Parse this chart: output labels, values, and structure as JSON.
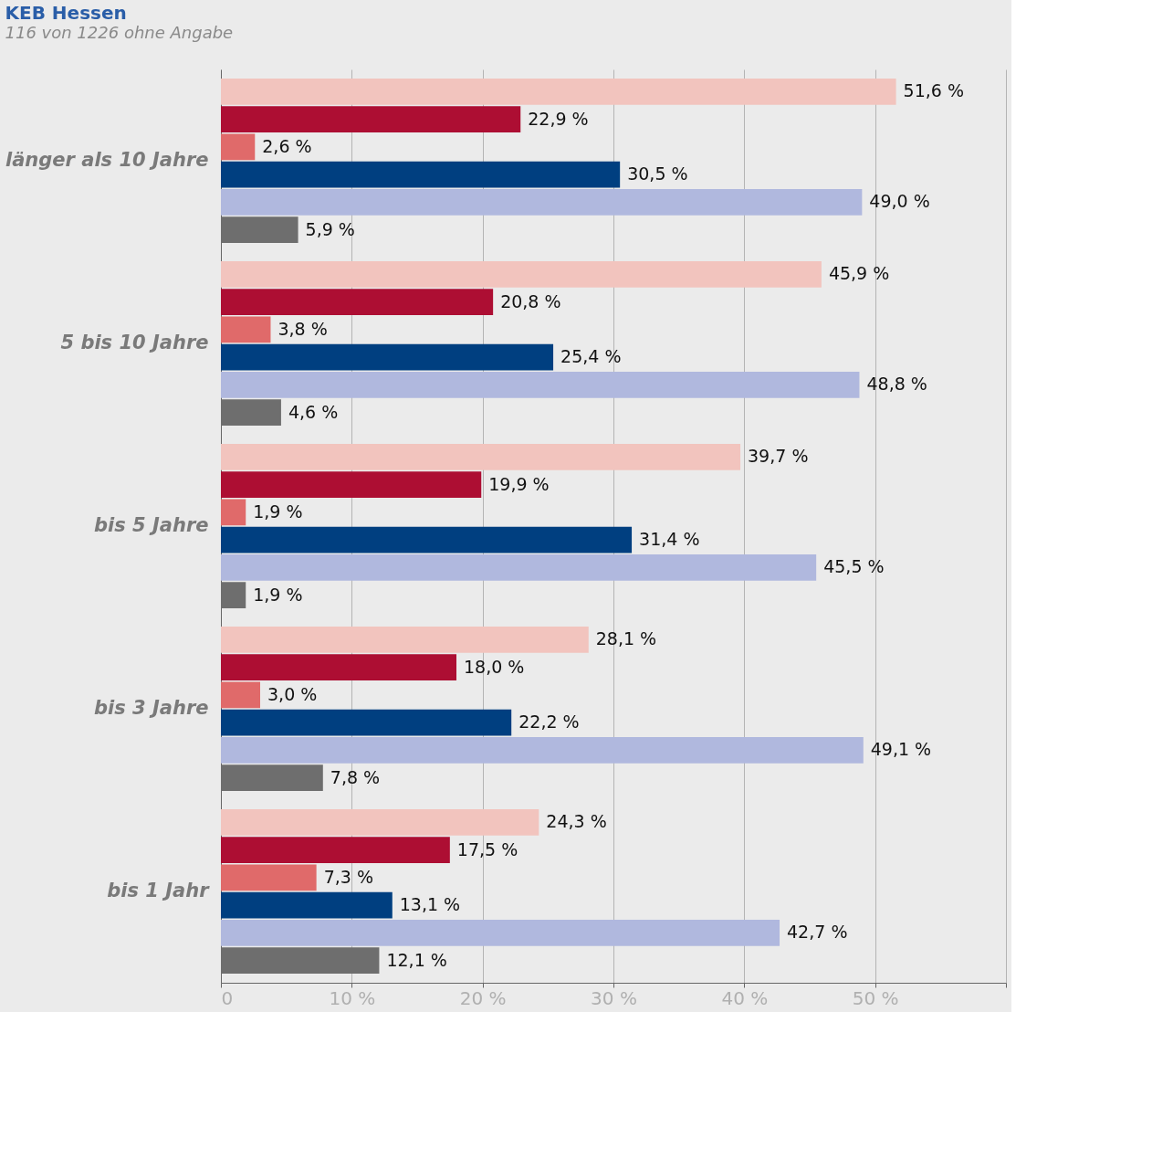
{
  "chart_data": {
    "type": "bar",
    "orientation": "horizontal",
    "title": "KEB Hessen",
    "subtitle": "116 von 1226 ohne Angabe",
    "categories": [
      "länger als 10 Jahre",
      "5 bis 10 Jahre",
      "bis 5 Jahre",
      "bis 3 Jahre",
      "bis 1 Jahr"
    ],
    "series": [
      {
        "color": "#f2c4be",
        "values": [
          51.6,
          45.9,
          39.7,
          28.1,
          24.3
        ],
        "value_labels": [
          "51,6 %",
          "45,9 %",
          "39,7 %",
          "28,1 %",
          "24,3 %"
        ]
      },
      {
        "color": "#ad0e33",
        "values": [
          22.9,
          20.8,
          19.9,
          18.0,
          17.5
        ],
        "value_labels": [
          "22,9 %",
          "20,8 %",
          "19,9 %",
          "18,0 %",
          "17,5 %"
        ]
      },
      {
        "color": "#e06a6a",
        "values": [
          2.6,
          3.8,
          1.9,
          3.0,
          7.3
        ],
        "value_labels": [
          "2,6 %",
          "3,8 %",
          "1,9 %",
          "3,0 %",
          "7,3 %"
        ]
      },
      {
        "color": "#003f80",
        "values": [
          30.5,
          25.4,
          31.4,
          22.2,
          13.1
        ],
        "value_labels": [
          "30,5 %",
          "25,4 %",
          "31,4 %",
          "22,2 %",
          "13,1 %"
        ]
      },
      {
        "color": "#b0b8de",
        "values": [
          49.0,
          48.8,
          45.5,
          49.1,
          42.7
        ],
        "value_labels": [
          "49,0 %",
          "48,8 %",
          "45,5 %",
          "49,1 %",
          "42,7 %"
        ]
      },
      {
        "color": "#6e6e6e",
        "values": [
          5.9,
          4.6,
          1.9,
          7.8,
          12.1
        ],
        "value_labels": [
          "5,9 %",
          "4,6 %",
          "1,9 %",
          "7,8 %",
          "12,1 %"
        ]
      }
    ],
    "xlim": [
      0,
      60
    ],
    "xticks": [
      0,
      {
        "value": 10,
        "label": "10 %"
      },
      {
        "value": 20,
        "label": "20 %"
      },
      {
        "value": 30,
        "label": "30 %"
      },
      {
        "value": 40,
        "label": "40 %"
      },
      {
        "value": 50,
        "label": "50 %"
      },
      {
        "value": 60,
        "label": null
      }
    ],
    "grid": "x"
  }
}
